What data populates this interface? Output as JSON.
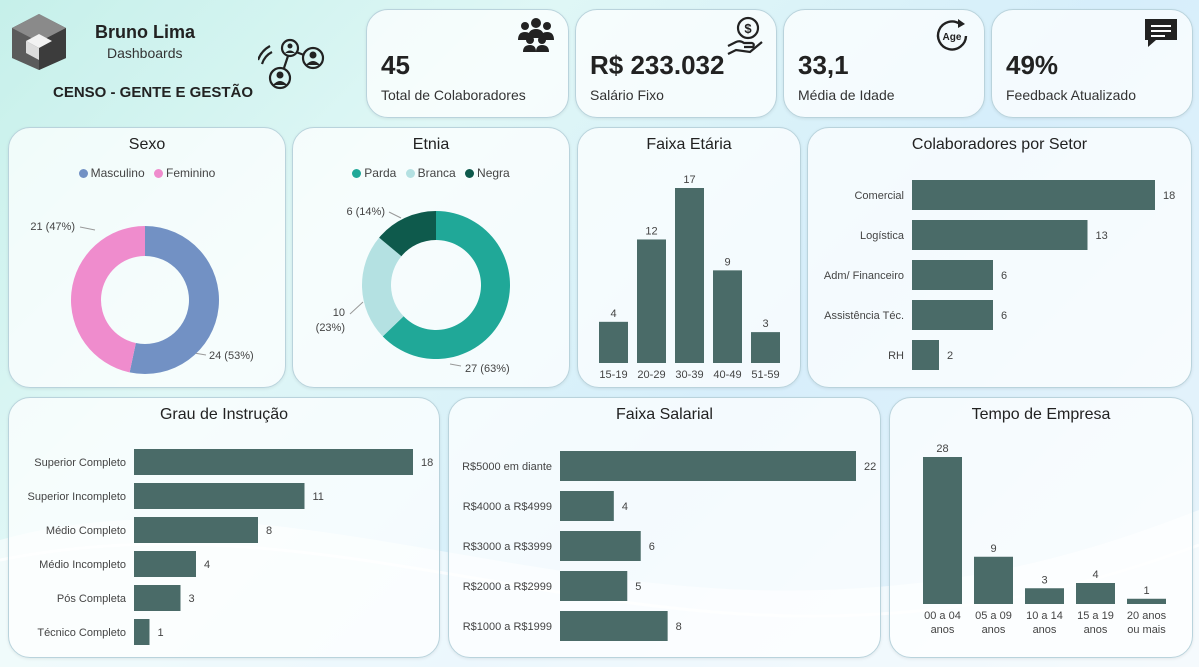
{
  "brand": {
    "name": "Bruno Lima",
    "subtitle": "Dashboards",
    "report_title": "CENSO - GENTE E GESTÃO"
  },
  "colors": {
    "bar": "#4a6b68",
    "masculino": "#7291c4",
    "feminino": "#ef8ccd",
    "parda": "#20a898",
    "branca": "#b4e1e2",
    "negra": "#0e5a4c"
  },
  "kpis": [
    {
      "value": "45",
      "label": "Total de Colaboradores",
      "icon": "people-group-icon"
    },
    {
      "value": "R$ 233.032",
      "label": "Salário Fixo",
      "icon": "money-hand-icon"
    },
    {
      "value": "33,1",
      "label": "Média de Idade",
      "icon": "age-icon"
    },
    {
      "value": "49%",
      "label": "Feedback Atualizado",
      "icon": "chat-icon"
    }
  ],
  "chart_data": [
    {
      "id": "sexo",
      "type": "pie",
      "title": "Sexo",
      "legend_position": "top",
      "slices": [
        {
          "name": "Masculino",
          "value": 24,
          "label": "24 (53%)"
        },
        {
          "name": "Feminino",
          "value": 21,
          "label": "21 (47%)"
        }
      ]
    },
    {
      "id": "etnia",
      "type": "pie",
      "title": "Etnia",
      "legend_position": "top",
      "slices": [
        {
          "name": "Parda",
          "value": 27,
          "label": "27 (63%)"
        },
        {
          "name": "Branca",
          "value": 10,
          "label_line1": "10",
          "label_line2": "(23%)"
        },
        {
          "name": "Negra",
          "value": 6,
          "label": "6 (14%)"
        }
      ]
    },
    {
      "id": "faixa_etaria",
      "type": "bar",
      "title": "Faixa Etária",
      "categories": [
        "15-19",
        "20-29",
        "30-39",
        "40-49",
        "51-59"
      ],
      "values": [
        4,
        12,
        17,
        9,
        3
      ]
    },
    {
      "id": "setor",
      "type": "bar",
      "orientation": "horizontal",
      "title": "Colaboradores por Setor",
      "categories": [
        "Comercial",
        "Logística",
        "Adm/ Financeiro",
        "Assistência Téc.",
        "RH"
      ],
      "values": [
        18,
        13,
        6,
        6,
        2
      ]
    },
    {
      "id": "instrucao",
      "type": "bar",
      "orientation": "horizontal",
      "title": "Grau de Instrução",
      "categories": [
        "Superior Completo",
        "Superior Incompleto",
        "Médio Completo",
        "Médio Incompleto",
        "Pós Completa",
        "Técnico Completo"
      ],
      "values": [
        18,
        11,
        8,
        4,
        3,
        1
      ]
    },
    {
      "id": "salarial",
      "type": "bar",
      "orientation": "horizontal",
      "title": "Faixa Salarial",
      "categories": [
        "R$5000 em diante",
        "R$4000 a R$4999",
        "R$3000 a R$3999",
        "R$2000 a R$2999",
        "R$1000 a R$1999"
      ],
      "values": [
        22,
        4,
        6,
        5,
        8
      ]
    },
    {
      "id": "tempo",
      "type": "bar",
      "title": "Tempo de Empresa",
      "categories": [
        [
          "00 a 04",
          "anos"
        ],
        [
          "05 a 09",
          "anos"
        ],
        [
          "10 a 14",
          "anos"
        ],
        [
          "15 a 19",
          "anos"
        ],
        [
          "20 anos",
          "ou mais"
        ]
      ],
      "values": [
        28,
        9,
        3,
        4,
        1
      ]
    }
  ]
}
